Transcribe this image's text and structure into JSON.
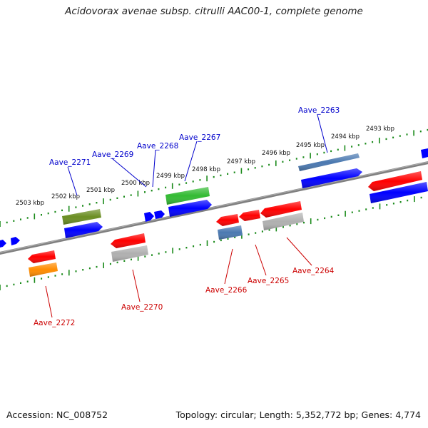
{
  "title": "Acidovorax avenae subsp. citrulli AAC00-1, complete genome",
  "footer": {
    "accession": "Accession: NC_008752",
    "summary": "Topology: circular; Length: 5,352,772 bp; Genes: 4,774"
  },
  "kbp_labels": [
    "2493 kbp",
    "2494 kbp",
    "2495 kbp",
    "2496 kbp",
    "2497 kbp",
    "2498 kbp",
    "2499 kbp",
    "2500 kbp",
    "2501 kbp",
    "2502 kbp",
    "2503 kbp"
  ],
  "gene_labels_forward": [
    "Aave_2263",
    "Aave_2267",
    "Aave_2268",
    "Aave_2269",
    "Aave_2271"
  ],
  "gene_labels_reverse": [
    "Aave_2264",
    "Aave_2265",
    "Aave_2266",
    "Aave_2270",
    "Aave_2272"
  ],
  "colors": {
    "forward_label": "#0000cc",
    "reverse_label": "#cc0000",
    "tick": "#1a8a1a",
    "backbone": "#808080",
    "cds_forward": "#0000ff",
    "cds_reverse": "#ff0000",
    "gene_green": "#33bb33",
    "gene_olive": "#6b8e23",
    "gene_steel": "#4a78b0",
    "gene_gray": "#b0b0b0",
    "gene_orange": "#ff8c00"
  }
}
